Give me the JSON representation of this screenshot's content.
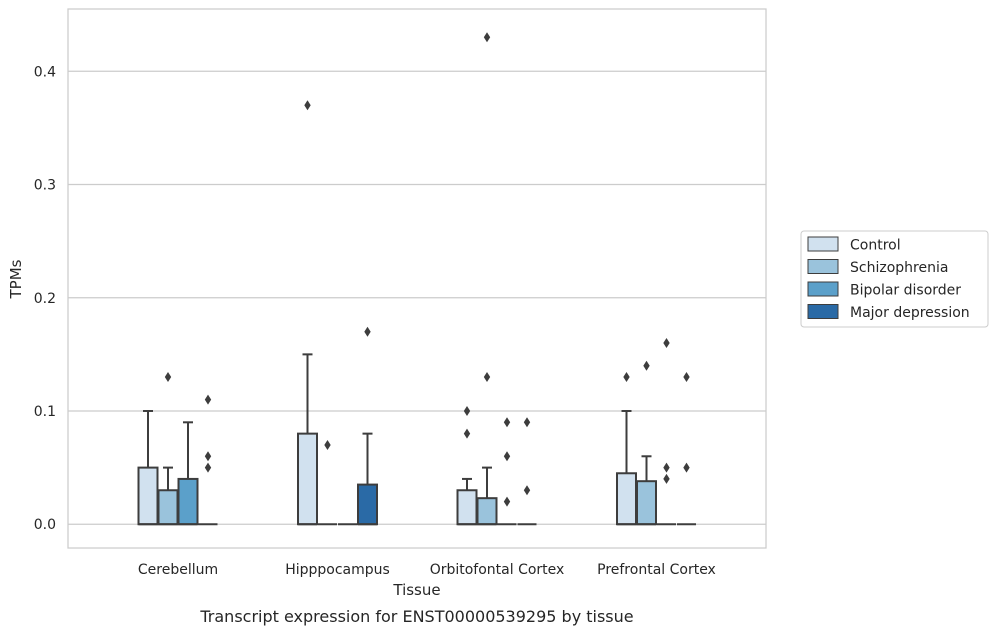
{
  "caption": "Transcript expression for ENST00000539295 by tissue",
  "chart_data": {
    "type": "box",
    "title": "",
    "xlabel": "Tissue",
    "ylabel": "TPMs",
    "ylim": [
      -0.021,
      0.455
    ],
    "yticks": [
      0.0,
      0.1,
      0.2,
      0.3,
      0.4
    ],
    "ytick_labels": [
      "0.0",
      "0.1",
      "0.2",
      "0.3",
      "0.4"
    ],
    "grid": "horizontal",
    "legend_position": "right",
    "categories": [
      "Cerebellum",
      "Hipppocampus",
      "Orbitofontal Cortex",
      "Prefrontal Cortex"
    ],
    "series": [
      {
        "name": "Control",
        "color": "#d1e1ef",
        "boxes": [
          {
            "q1": 0.0,
            "median": 0.0,
            "q3": 0.05,
            "whisker_low": 0.0,
            "whisker_high": 0.1,
            "outliers": []
          },
          {
            "q1": 0.0,
            "median": 0.0,
            "q3": 0.08,
            "whisker_low": 0.0,
            "whisker_high": 0.15,
            "outliers": [
              0.37
            ]
          },
          {
            "q1": 0.0,
            "median": 0.0,
            "q3": 0.03,
            "whisker_low": 0.0,
            "whisker_high": 0.04,
            "outliers": [
              0.08,
              0.1
            ]
          },
          {
            "q1": 0.0,
            "median": 0.0,
            "q3": 0.045,
            "whisker_low": 0.0,
            "whisker_high": 0.1,
            "outliers": [
              0.13
            ]
          }
        ]
      },
      {
        "name": "Schizophrenia",
        "color": "#9ac3dc",
        "boxes": [
          {
            "q1": 0.0,
            "median": 0.0,
            "q3": 0.03,
            "whisker_low": 0.0,
            "whisker_high": 0.05,
            "outliers": [
              0.13
            ]
          },
          {
            "q1": 0.0,
            "median": 0.0,
            "q3": 0.0,
            "whisker_low": 0.0,
            "whisker_high": 0.0,
            "outliers": [
              0.07
            ]
          },
          {
            "q1": 0.0,
            "median": 0.0,
            "q3": 0.023,
            "whisker_low": 0.0,
            "whisker_high": 0.05,
            "outliers": [
              0.13,
              0.43
            ]
          },
          {
            "q1": 0.0,
            "median": 0.0,
            "q3": 0.038,
            "whisker_low": 0.0,
            "whisker_high": 0.06,
            "outliers": [
              0.14
            ]
          }
        ]
      },
      {
        "name": "Bipolar disorder",
        "color": "#5ba0ca",
        "boxes": [
          {
            "q1": 0.0,
            "median": 0.0,
            "q3": 0.04,
            "whisker_low": 0.0,
            "whisker_high": 0.09,
            "outliers": []
          },
          {
            "q1": 0.0,
            "median": 0.0,
            "q3": 0.0,
            "whisker_low": 0.0,
            "whisker_high": 0.0,
            "outliers": []
          },
          {
            "q1": 0.0,
            "median": 0.0,
            "q3": 0.0,
            "whisker_low": 0.0,
            "whisker_high": 0.0,
            "outliers": [
              0.02,
              0.06,
              0.09
            ]
          },
          {
            "q1": 0.0,
            "median": 0.0,
            "q3": 0.0,
            "whisker_low": 0.0,
            "whisker_high": 0.0,
            "outliers": [
              0.04,
              0.05,
              0.16
            ]
          }
        ]
      },
      {
        "name": "Major depression",
        "color": "#2a6aa6",
        "boxes": [
          {
            "q1": 0.0,
            "median": 0.0,
            "q3": 0.0,
            "whisker_low": 0.0,
            "whisker_high": 0.0,
            "outliers": [
              0.05,
              0.06,
              0.11
            ]
          },
          {
            "q1": 0.0,
            "median": 0.0,
            "q3": 0.035,
            "whisker_low": 0.0,
            "whisker_high": 0.08,
            "outliers": [
              0.17
            ]
          },
          {
            "q1": 0.0,
            "median": 0.0,
            "q3": 0.0,
            "whisker_low": 0.0,
            "whisker_high": 0.0,
            "outliers": [
              0.03,
              0.09
            ]
          },
          {
            "q1": 0.0,
            "median": 0.0,
            "q3": 0.0,
            "whisker_low": 0.0,
            "whisker_high": 0.0,
            "outliers": [
              0.05,
              0.13
            ]
          }
        ]
      }
    ]
  }
}
